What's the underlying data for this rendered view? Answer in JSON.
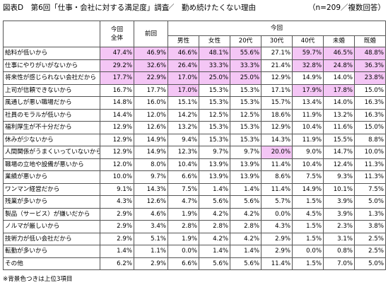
{
  "title": {
    "main": "図表D　第6回「仕事・会社に対する満足度」調査",
    "sub": "／　勤め続けたくない理由",
    "note": "（n=209／複数回答）"
  },
  "table": {
    "headers": {
      "current_total_line1": "今回",
      "current_total_line2": "全体",
      "previous": "前回",
      "group": "今回",
      "subcolumns": [
        "男性",
        "女性",
        "20代",
        "30代",
        "40代",
        "未婚",
        "既婚"
      ]
    },
    "rows": [
      {
        "label": "給料が低いから",
        "values": [
          "47.4%",
          "46.9%",
          "46.6%",
          "48.1%",
          "55.6%",
          "27.1%",
          "59.7%",
          "46.5%",
          "48.8%"
        ]
      },
      {
        "label": "仕事にやりがいがないから",
        "values": [
          "29.2%",
          "32.6%",
          "26.4%",
          "33.3%",
          "33.3%",
          "21.4%",
          "32.8%",
          "24.8%",
          "36.3%"
        ]
      },
      {
        "label": "将来性が感じられない会社だから",
        "values": [
          "17.7%",
          "22.9%",
          "17.0%",
          "25.0%",
          "25.0%",
          "12.9%",
          "14.9%",
          "14.0%",
          "23.8%"
        ]
      },
      {
        "label": "上司が信頼できないから",
        "values": [
          "16.7%",
          "17.7%",
          "17.0%",
          "15.3%",
          "15.3%",
          "17.1%",
          "17.9%",
          "17.8%",
          "15.0%"
        ]
      },
      {
        "label": "風通しが悪い職場だから",
        "values": [
          "14.8%",
          "16.0%",
          "15.1%",
          "15.3%",
          "15.3%",
          "15.7%",
          "13.4%",
          "14.0%",
          "16.3%"
        ]
      },
      {
        "label": "社員のモラルが低いから",
        "values": [
          "14.4%",
          "12.0%",
          "14.2%",
          "12.5%",
          "12.5%",
          "18.6%",
          "11.9%",
          "13.2%",
          "16.3%"
        ]
      },
      {
        "label": "福利厚生が不十分だから",
        "values": [
          "12.9%",
          "12.6%",
          "13.2%",
          "15.3%",
          "15.3%",
          "12.9%",
          "10.4%",
          "11.6%",
          "15.0%"
        ]
      },
      {
        "label": "休みが少ないから",
        "values": [
          "12.9%",
          "14.9%",
          "9.4%",
          "15.3%",
          "15.3%",
          "14.3%",
          "11.9%",
          "15.5%",
          "8.8%"
        ]
      },
      {
        "label": "人間関係がうまくいっていないから",
        "values": [
          "12.9%",
          "14.9%",
          "12.3%",
          "9.7%",
          "9.7%",
          "20.0%",
          "9.0%",
          "14.7%",
          "10.0%"
        ]
      },
      {
        "label": "職場の立地や設備が悪いから",
        "values": [
          "12.0%",
          "8.0%",
          "10.4%",
          "13.9%",
          "13.9%",
          "11.4%",
          "10.4%",
          "12.4%",
          "11.3%"
        ]
      },
      {
        "label": "業績が悪いから",
        "values": [
          "10.0%",
          "9.7%",
          "6.6%",
          "13.9%",
          "13.9%",
          "8.6%",
          "7.5%",
          "9.3%",
          "11.3%"
        ]
      },
      {
        "label": "ワンマン経営だから",
        "values": [
          "9.1%",
          "14.3%",
          "7.5%",
          "1.4%",
          "1.4%",
          "11.4%",
          "14.9%",
          "10.1%",
          "7.5%"
        ]
      },
      {
        "label": "残業が多いから",
        "values": [
          "4.3%",
          "12.6%",
          "4.7%",
          "5.6%",
          "5.6%",
          "5.7%",
          "1.5%",
          "3.9%",
          "5.0%"
        ]
      },
      {
        "label": "製品（サービス）が嫌いだから",
        "values": [
          "2.9%",
          "4.6%",
          "1.9%",
          "4.2%",
          "4.2%",
          "0.0%",
          "4.5%",
          "3.9%",
          "1.3%"
        ]
      },
      {
        "label": "ノルマが厳しいから",
        "values": [
          "2.9%",
          "3.4%",
          "2.8%",
          "2.8%",
          "2.8%",
          "4.3%",
          "1.5%",
          "2.3%",
          "3.8%"
        ]
      },
      {
        "label": "技術力が低い会社だから",
        "values": [
          "2.9%",
          "5.1%",
          "1.9%",
          "4.2%",
          "4.2%",
          "2.9%",
          "1.5%",
          "3.1%",
          "2.5%"
        ]
      },
      {
        "label": "転勤が多いから",
        "values": [
          "1.4%",
          "1.1%",
          "0.0%",
          "1.4%",
          "1.4%",
          "2.9%",
          "0.0%",
          "0.8%",
          "2.5%"
        ]
      },
      {
        "label": "その他",
        "values": [
          "6.2%",
          "2.9%",
          "6.6%",
          "5.6%",
          "5.6%",
          "11.4%",
          "1.5%",
          "7.0%",
          "5.0%"
        ]
      }
    ],
    "highlight_color": "#f4c6f5"
  },
  "footnote": "※背景色つきは上位3項目"
}
